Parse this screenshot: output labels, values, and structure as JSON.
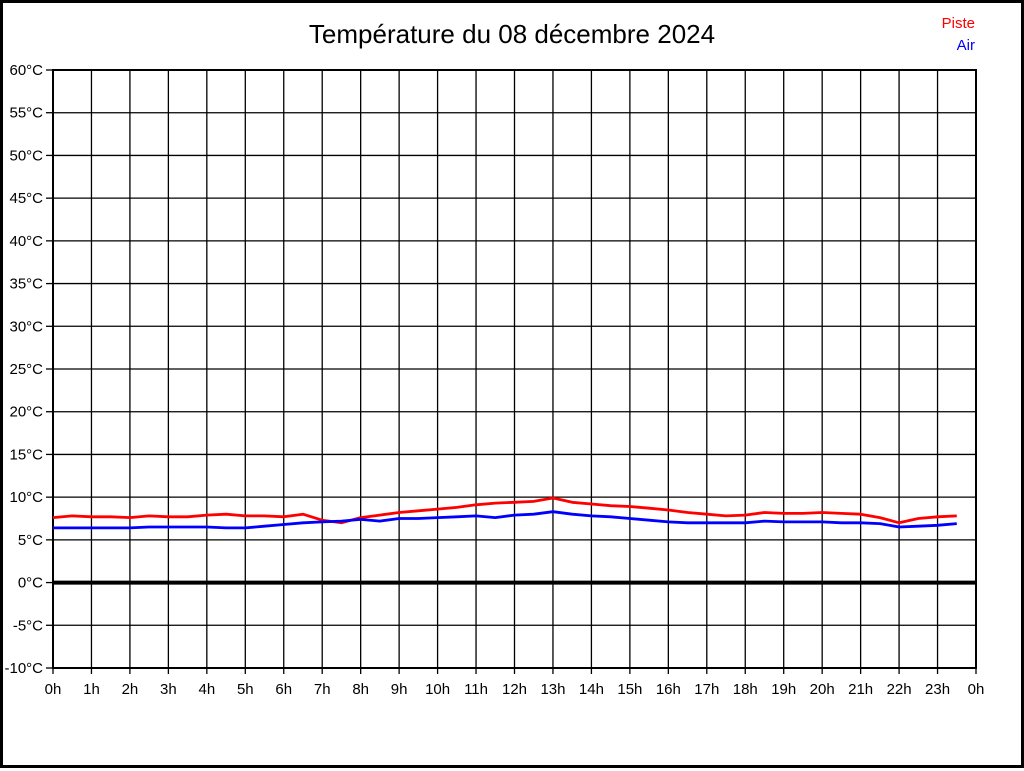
{
  "title": "Température du 08 décembre 2024",
  "legend": [
    {
      "label": "Piste",
      "color": "#ff0000"
    },
    {
      "label": "Air",
      "color": "#0000ff"
    }
  ],
  "colors": {
    "grid": "#000000",
    "axis": "#000000",
    "background": "#ffffff",
    "zero_line": "#000000"
  },
  "chart_data": {
    "type": "line",
    "title": "Température du 08 décembre 2024",
    "xlabel": "",
    "ylabel": "",
    "grid": true,
    "legend_position": "top-right",
    "xlim": [
      0,
      24
    ],
    "ylim": [
      -10,
      60
    ],
    "y_ticks": {
      "values": [
        60,
        55,
        50,
        45,
        40,
        35,
        30,
        25,
        20,
        15,
        10,
        5,
        0,
        -5,
        -10
      ],
      "labels": [
        "60°C",
        "55°C",
        "50°C",
        "45°C",
        "40°C",
        "35°C",
        "30°C",
        "25°C",
        "20°C",
        "15°C",
        "10°C",
        "5°C",
        "0°C",
        "-5°C",
        "-10°C"
      ]
    },
    "x_ticks": {
      "values": [
        0,
        1,
        2,
        3,
        4,
        5,
        6,
        7,
        8,
        9,
        10,
        11,
        12,
        13,
        14,
        15,
        16,
        17,
        18,
        19,
        20,
        21,
        22,
        23,
        24
      ],
      "labels": [
        "0h",
        "1h",
        "2h",
        "3h",
        "4h",
        "5h",
        "6h",
        "7h",
        "8h",
        "9h",
        "10h",
        "11h",
        "12h",
        "13h",
        "14h",
        "15h",
        "16h",
        "17h",
        "18h",
        "19h",
        "20h",
        "21h",
        "22h",
        "23h",
        "0h"
      ]
    },
    "zero_line_value": 0,
    "x": [
      0,
      0.5,
      1,
      1.5,
      2,
      2.5,
      3,
      3.5,
      4,
      4.5,
      5,
      5.5,
      6,
      6.5,
      7,
      7.5,
      8,
      8.5,
      9,
      9.5,
      10,
      10.5,
      11,
      11.5,
      12,
      12.5,
      13,
      13.5,
      14,
      14.5,
      15,
      15.5,
      16,
      16.5,
      17,
      17.5,
      18,
      18.5,
      19,
      19.5,
      20,
      20.5,
      21,
      21.5,
      22,
      22.5,
      23,
      23.5
    ],
    "series": [
      {
        "name": "Piste",
        "color": "#ff0000",
        "values": [
          7.6,
          7.8,
          7.7,
          7.7,
          7.6,
          7.8,
          7.7,
          7.7,
          7.9,
          8.0,
          7.8,
          7.8,
          7.7,
          8.0,
          7.3,
          7.0,
          7.6,
          7.9,
          8.2,
          8.4,
          8.6,
          8.8,
          9.1,
          9.3,
          9.4,
          9.5,
          9.9,
          9.4,
          9.2,
          9.0,
          8.9,
          8.7,
          8.5,
          8.2,
          8.0,
          7.8,
          7.9,
          8.2,
          8.1,
          8.1,
          8.2,
          8.1,
          8.0,
          7.6,
          7.0,
          7.5,
          7.7,
          7.8
        ]
      },
      {
        "name": "Air",
        "color": "#0000ff",
        "values": [
          6.4,
          6.4,
          6.4,
          6.4,
          6.4,
          6.5,
          6.5,
          6.5,
          6.5,
          6.4,
          6.4,
          6.6,
          6.8,
          7.0,
          7.1,
          7.2,
          7.4,
          7.2,
          7.5,
          7.5,
          7.6,
          7.7,
          7.8,
          7.6,
          7.9,
          8.0,
          8.3,
          8.0,
          7.8,
          7.7,
          7.5,
          7.3,
          7.1,
          7.0,
          7.0,
          7.0,
          7.0,
          7.2,
          7.1,
          7.1,
          7.1,
          7.0,
          7.0,
          6.9,
          6.5,
          6.6,
          6.7,
          6.9
        ]
      }
    ]
  }
}
